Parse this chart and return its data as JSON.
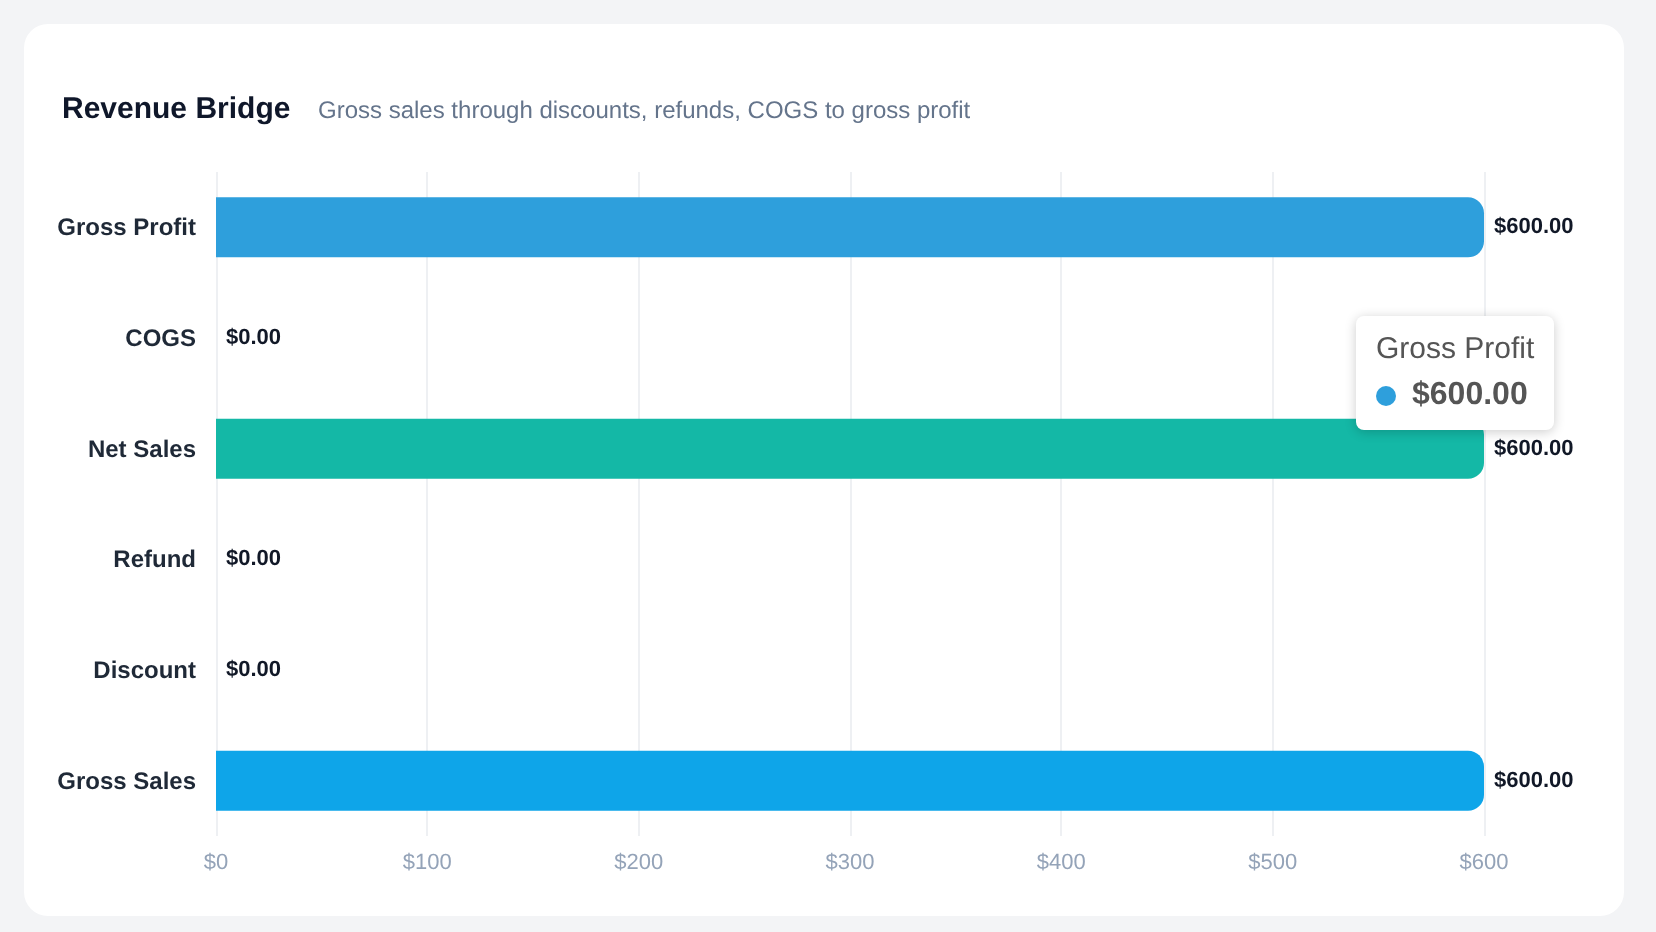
{
  "chart_data": {
    "type": "bar",
    "orientation": "horizontal",
    "title": "Revenue Bridge",
    "subtitle": "Gross sales through discounts, refunds, COGS to gross profit",
    "categories": [
      "Gross Profit",
      "COGS",
      "Net Sales",
      "Refund",
      "Discount",
      "Gross Sales"
    ],
    "values": [
      600,
      0,
      600,
      0,
      0,
      600
    ],
    "colors": [
      "#2e9fdc",
      "#2e9fdc",
      "#14b8a6",
      "#2e9fdc",
      "#2e9fdc",
      "#0ea5e9"
    ],
    "value_labels": [
      "$600.00",
      "$0.00",
      "$600.00",
      "$0.00",
      "$0.00",
      "$600.00"
    ],
    "xlim": [
      0,
      600
    ],
    "xticks": [
      {
        "value": 0,
        "label": "$0"
      },
      {
        "value": 100,
        "label": "$100"
      },
      {
        "value": 200,
        "label": "$200"
      },
      {
        "value": 300,
        "label": "$300"
      },
      {
        "value": 400,
        "label": "$400"
      },
      {
        "value": 500,
        "label": "$500"
      },
      {
        "value": 600,
        "label": "$600"
      }
    ],
    "grid": "x",
    "annotations": [
      "Gross Profit",
      "$600.00"
    ]
  }
}
